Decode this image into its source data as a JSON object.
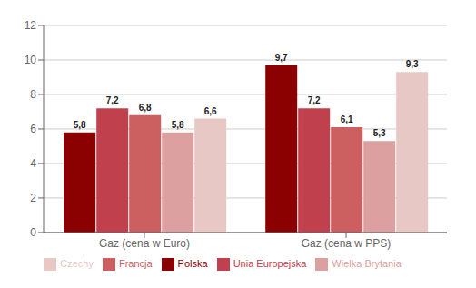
{
  "chart_data": {
    "type": "bar",
    "categories": [
      "Gaz (cena w Euro)",
      "Gaz (cena w PPS)"
    ],
    "series": [
      {
        "name": "Polska",
        "values": [
          5.8,
          9.7
        ],
        "value_labels": [
          "5,8",
          "9,7"
        ],
        "color": "#8B0000"
      },
      {
        "name": "Unia Europejska",
        "values": [
          7.2,
          7.2
        ],
        "value_labels": [
          "7,2",
          "7,2"
        ],
        "color": "#C0404D"
      },
      {
        "name": "Francja",
        "values": [
          6.8,
          6.1
        ],
        "value_labels": [
          "6,8",
          "6,1"
        ],
        "color": "#CC6060"
      },
      {
        "name": "Wielka Brytania",
        "values": [
          5.8,
          5.3
        ],
        "value_labels": [
          "5,8",
          "5,3"
        ],
        "color": "#DDA0A0"
      },
      {
        "name": "Czechy",
        "values": [
          6.6,
          9.3
        ],
        "value_labels": [
          "6,6",
          "9,3"
        ],
        "color": "#E8C8C4"
      }
    ],
    "ylim": [
      0,
      12
    ],
    "yticks": [
      0,
      2,
      4,
      6,
      8,
      10,
      12
    ],
    "grid": true,
    "legend": "bottom",
    "data_labels": true
  }
}
